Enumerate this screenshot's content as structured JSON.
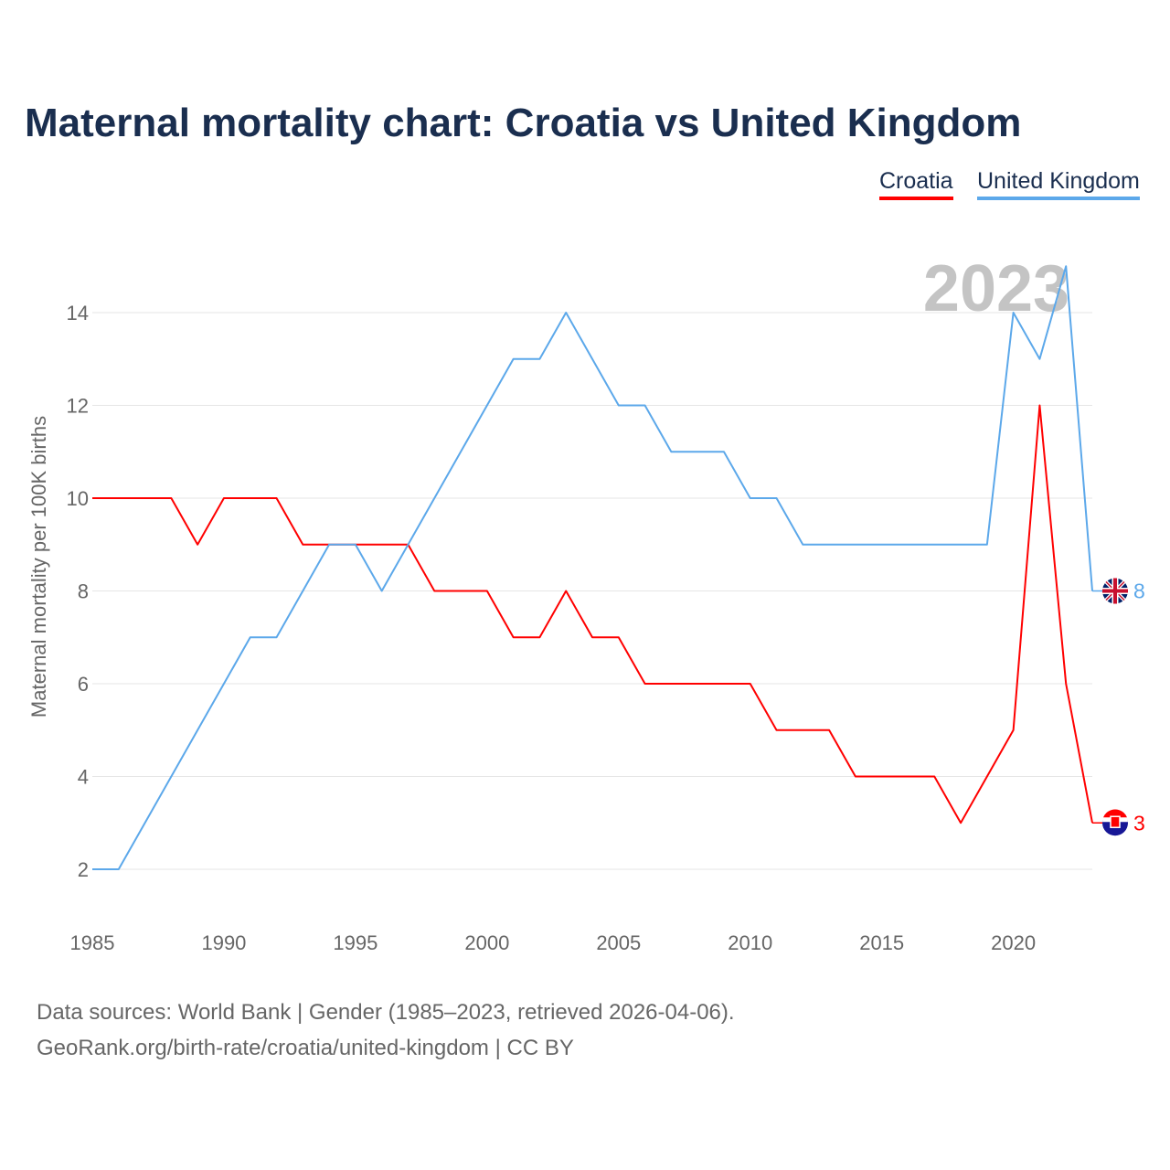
{
  "chart_data": {
    "type": "line",
    "title": "Maternal mortality chart: Croatia vs United Kingdom",
    "xlabel": "",
    "ylabel": "Maternal mortality per 100K births",
    "xlim": [
      1985,
      2023
    ],
    "ylim": [
      1,
      15.5
    ],
    "x_ticks": [
      1985,
      1990,
      1995,
      2000,
      2005,
      2010,
      2015,
      2020
    ],
    "y_ticks": [
      2,
      4,
      6,
      8,
      10,
      12,
      14
    ],
    "grid": true,
    "legend_position": "top-right",
    "year_label": "2023",
    "x": [
      1985,
      1986,
      1987,
      1988,
      1989,
      1990,
      1991,
      1992,
      1993,
      1994,
      1995,
      1996,
      1997,
      1998,
      1999,
      2000,
      2001,
      2002,
      2003,
      2004,
      2005,
      2006,
      2007,
      2008,
      2009,
      2010,
      2011,
      2012,
      2013,
      2014,
      2015,
      2016,
      2017,
      2018,
      2019,
      2020,
      2021,
      2022,
      2023
    ],
    "series": [
      {
        "name": "Croatia",
        "color": "#ff0000",
        "end_label": "3",
        "values": [
          10,
          10,
          10,
          10,
          9,
          10,
          10,
          10,
          9,
          9,
          9,
          9,
          9,
          8,
          8,
          8,
          7,
          7,
          8,
          7,
          7,
          6,
          6,
          6,
          6,
          6,
          5,
          5,
          5,
          4,
          4,
          4,
          4,
          3,
          4,
          5,
          12,
          6,
          3
        ]
      },
      {
        "name": "United Kingdom",
        "color": "#5ca8ea",
        "end_label": "8",
        "values": [
          2,
          2,
          3,
          4,
          5,
          6,
          7,
          7,
          8,
          9,
          9,
          8,
          9,
          10,
          11,
          12,
          13,
          13,
          14,
          13,
          12,
          12,
          11,
          11,
          11,
          10,
          10,
          9,
          9,
          9,
          9,
          9,
          9,
          9,
          9,
          14,
          13,
          15,
          8
        ]
      }
    ]
  },
  "footer": {
    "line1": "Data sources: World Bank | Gender (1985–2023, retrieved 2026-04-06).",
    "line2": "GeoRank.org/birth-rate/croatia/united-kingdom | CC BY"
  }
}
